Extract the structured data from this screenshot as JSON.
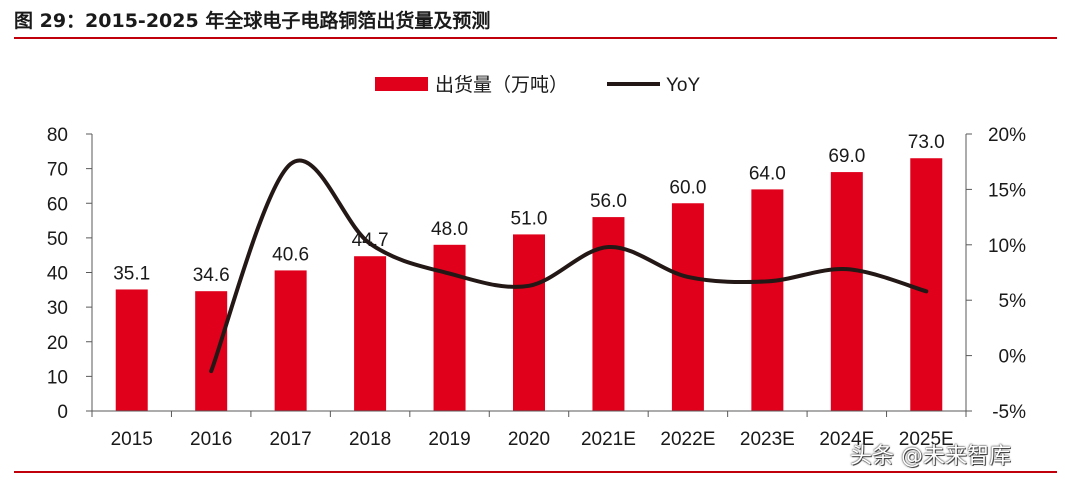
{
  "title": "图 29：2015-2025 年全球电子电路铜箔出货量及预测",
  "watermark": "头条 @未来智库",
  "colors": {
    "bar": "#e0001b",
    "line": "#231815",
    "rule": "#c0000a",
    "axis": "#595959"
  },
  "chart_data": {
    "type": "bar+line",
    "categories": [
      "2015",
      "2016",
      "2017",
      "2018",
      "2019",
      "2020",
      "2021E",
      "2022E",
      "2023E",
      "2024E",
      "2025E"
    ],
    "series": [
      {
        "name": "出货量（万吨）",
        "type": "bar",
        "axis": "left",
        "values": [
          35.1,
          34.6,
          40.6,
          44.7,
          48.0,
          51.0,
          56.0,
          60.0,
          64.0,
          69.0,
          73.0
        ],
        "labels": [
          "35.1",
          "34.6",
          "40.6",
          "44.7",
          "48.0",
          "51.0",
          "56.0",
          "60.0",
          "64.0",
          "69.0",
          "73.0"
        ]
      },
      {
        "name": "YoY",
        "type": "line",
        "axis": "right",
        "values": [
          null,
          -1.4,
          17.3,
          10.1,
          7.4,
          6.3,
          9.8,
          7.1,
          6.7,
          7.8,
          5.8
        ]
      }
    ],
    "y_left": {
      "min": 0,
      "max": 80,
      "ticks": [
        "0",
        "10",
        "20",
        "30",
        "40",
        "50",
        "60",
        "70",
        "80"
      ]
    },
    "y_right": {
      "min": -5,
      "max": 20,
      "ticks": [
        "-5%",
        "0%",
        "5%",
        "10%",
        "15%",
        "20%"
      ]
    },
    "legend": "top-center"
  }
}
